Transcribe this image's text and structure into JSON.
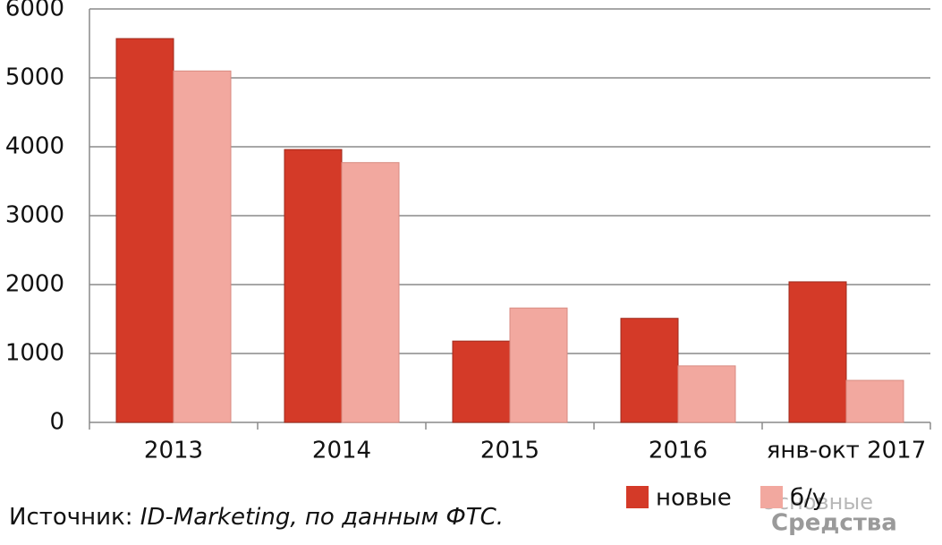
{
  "chart_data": {
    "type": "bar",
    "categories": [
      "2013",
      "2014",
      "2015",
      "2016",
      "янв-окт 2017"
    ],
    "series": [
      {
        "name": "новые",
        "color": "#d43a28",
        "values": [
          5570,
          3960,
          1180,
          1510,
          2040
        ]
      },
      {
        "name": "б/у",
        "color": "#f2a89f",
        "values": [
          5100,
          3770,
          1660,
          820,
          610
        ]
      }
    ],
    "ylim": [
      0,
      6000
    ],
    "yticks": [
      0,
      1000,
      2000,
      3000,
      4000,
      5000,
      6000
    ],
    "grid": true,
    "source": {
      "label": "Источник:",
      "text": "ID-Marketing, по данным ФТС."
    },
    "watermark": [
      "Основные",
      "Средства"
    ]
  }
}
